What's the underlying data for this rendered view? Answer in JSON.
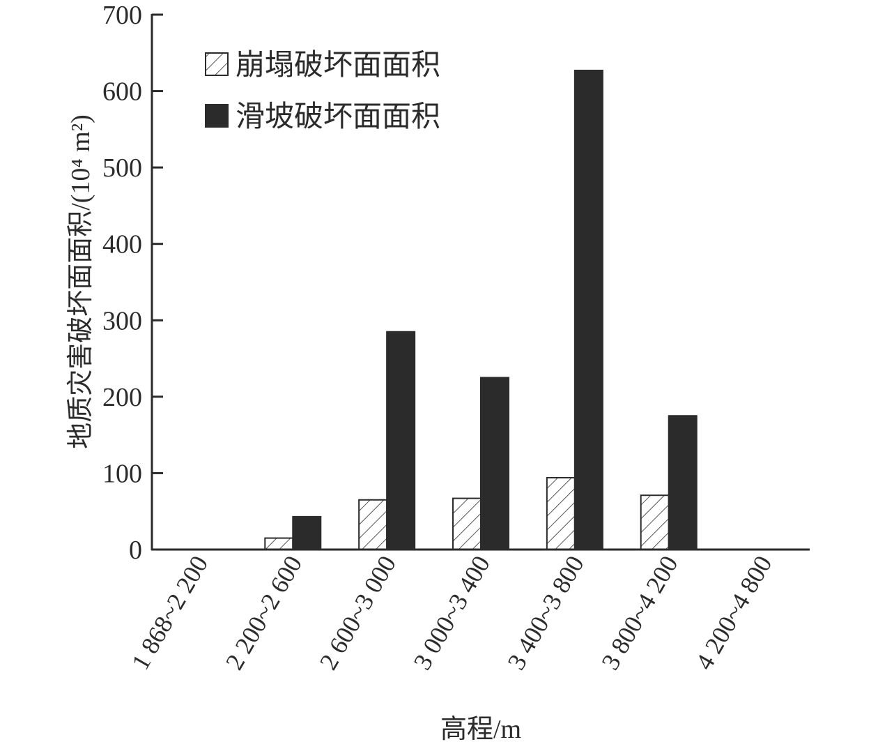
{
  "chart_data": {
    "type": "bar",
    "xlabel": "高程/m",
    "ylabel": "地质灾害破坏面面积/(10⁴ m²)",
    "ylim": [
      0,
      700
    ],
    "yticks": [
      0,
      100,
      200,
      300,
      400,
      500,
      600,
      700
    ],
    "categories": [
      "1 868~2 200",
      "2 200~2 600",
      "2 600~3 000",
      "3 000~3 400",
      "3 400~3 800",
      "3 800~4 200",
      "4 200~4 800"
    ],
    "series": [
      {
        "name": "崩塌破坏面面积",
        "values": [
          0,
          15,
          65,
          67,
          94,
          71,
          0
        ],
        "fill": "hatch",
        "color": "#2b2b2b"
      },
      {
        "name": "滑坡破坏面面积",
        "values": [
          0,
          43,
          285,
          225,
          627,
          175,
          0
        ],
        "fill": "solid",
        "color": "#2b2b2b"
      }
    ],
    "legend_position": "top-left",
    "grid": false
  }
}
